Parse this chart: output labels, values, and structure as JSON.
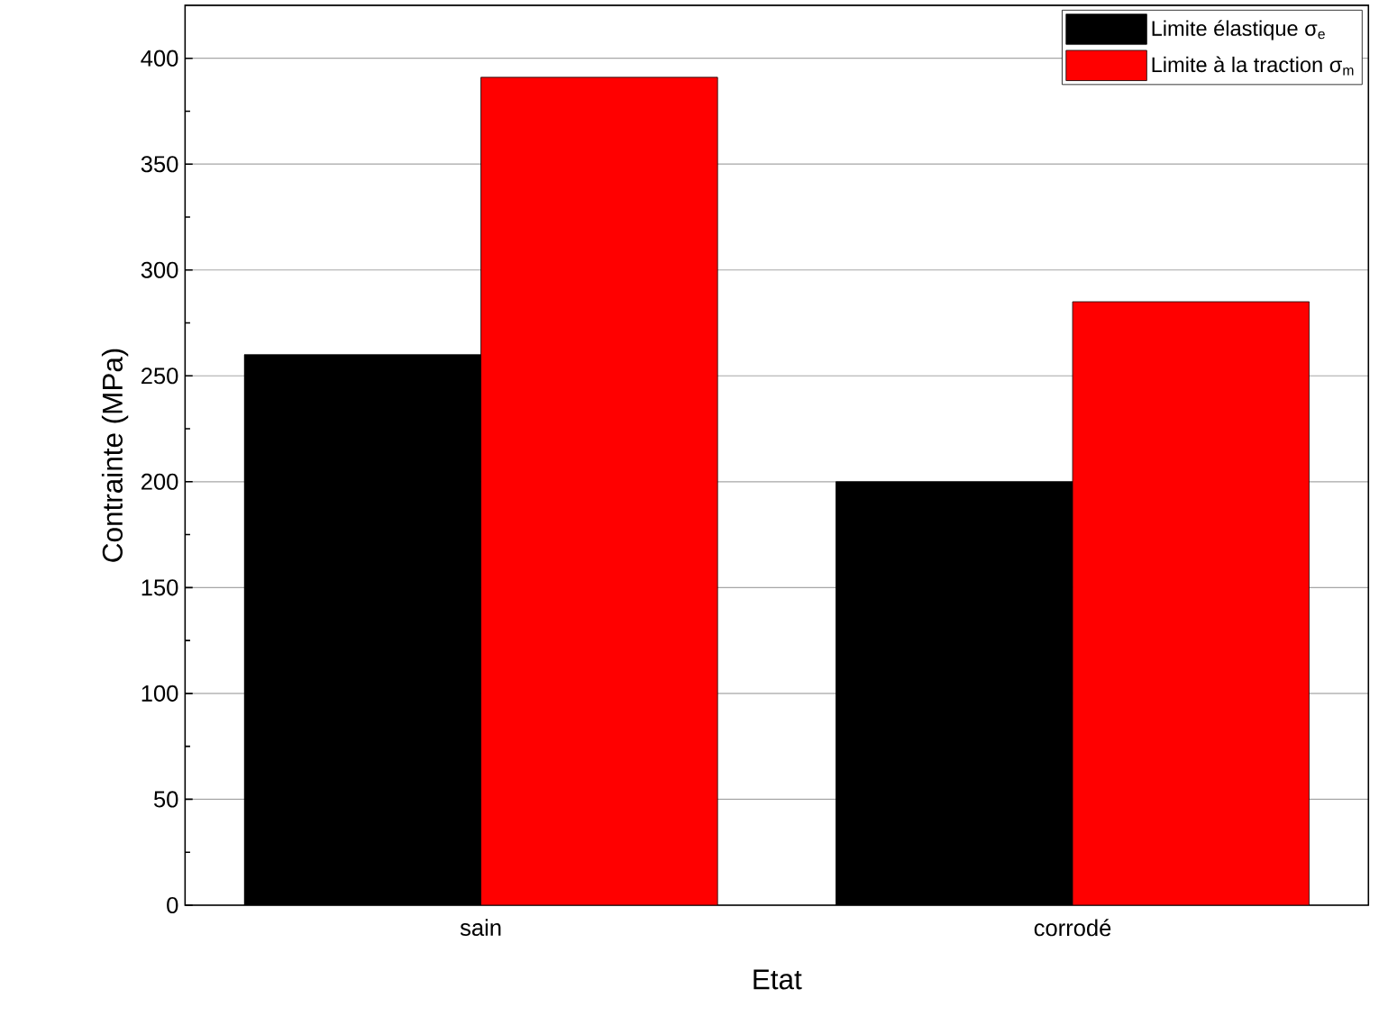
{
  "chart_data": {
    "type": "bar",
    "xlabel": "Etat",
    "ylabel": "Contrainte (MPa)",
    "categories": [
      "sain",
      "corrodé"
    ],
    "series": [
      {
        "name": "Limite élastique σ$_{e}$",
        "color": "#000000",
        "values": [
          260,
          200
        ]
      },
      {
        "name": "Limite à la traction σ$_{m}$",
        "color": "#ff0000",
        "values": [
          391,
          285
        ]
      }
    ],
    "ylim": [
      0,
      425
    ],
    "yticks": [
      0,
      50,
      100,
      150,
      200,
      250,
      300,
      350,
      400
    ],
    "grid": "y",
    "legend": "top right"
  }
}
